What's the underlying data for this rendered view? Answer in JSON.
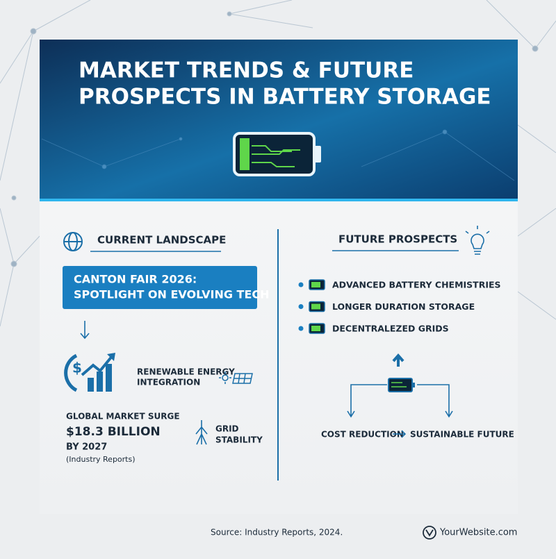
{
  "header": {
    "title_lines": [
      "MARKET TRENDS & FUTURE",
      "PROSPECTS IN BATTERY STORAGE"
    ]
  },
  "current_landscape": {
    "heading": "CURRENT LANDSCAPE",
    "highlight_lines": [
      "CANTON FAIR 2026:",
      "SPOTLIGHT ON EVOLVING TECH"
    ],
    "renewable_lines": [
      "RENEWABLE ENERGY",
      "INTEGRATION"
    ],
    "market_label": "GLOBAL MARKET SURGE",
    "market_value": "$18.3 BILLION",
    "market_year": "BY 2027",
    "market_source": "(Industry Reports)",
    "grid_lines": [
      "GRID",
      "STABILITY"
    ]
  },
  "future_prospects": {
    "heading": "FUTURE PROSPECTS",
    "items": [
      "ADVANCED BATTERY CHEMISTRIES",
      "LONGER DURATION STORAGE",
      "DECENTRALEZED GRIDS"
    ],
    "outcome_left": "COST REDUCTION",
    "outcome_right": "SUSTAINABLE FUTURE"
  },
  "footer": {
    "source": "Source: Industry Reports, 2024.",
    "website": "YourWebsite.com"
  }
}
